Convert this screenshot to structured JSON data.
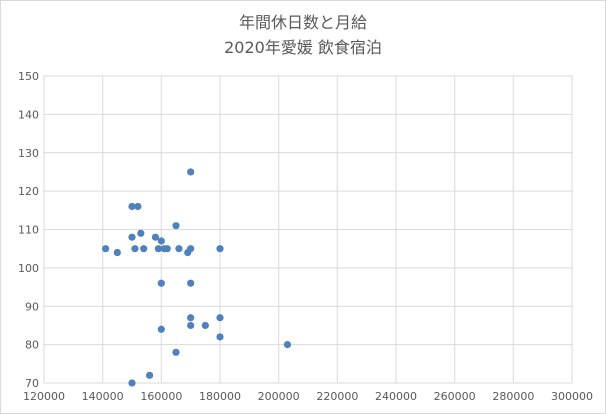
{
  "chart_data": {
    "type": "scatter",
    "title_lines": [
      "年間休日数と月給",
      "2020年愛媛 飲食宿泊"
    ],
    "xlabel": "",
    "ylabel": "",
    "xlim": [
      120000,
      300000
    ],
    "ylim": [
      70,
      150
    ],
    "x_ticks": [
      120000,
      140000,
      160000,
      180000,
      200000,
      220000,
      240000,
      260000,
      280000,
      300000
    ],
    "y_ticks": [
      70,
      80,
      90,
      100,
      110,
      120,
      130,
      140,
      150
    ],
    "grid": true,
    "legend": "none",
    "series": [
      {
        "color": "#4f81bd",
        "points": [
          [
            141000,
            105
          ],
          [
            145000,
            104
          ],
          [
            150000,
            116
          ],
          [
            152000,
            116
          ],
          [
            150000,
            108
          ],
          [
            153000,
            109
          ],
          [
            151000,
            105
          ],
          [
            154000,
            105
          ],
          [
            158000,
            108
          ],
          [
            160000,
            107
          ],
          [
            159000,
            105
          ],
          [
            161000,
            105
          ],
          [
            162000,
            105
          ],
          [
            165000,
            111
          ],
          [
            166000,
            105
          ],
          [
            169000,
            104
          ],
          [
            170000,
            105
          ],
          [
            170000,
            125
          ],
          [
            180000,
            105
          ],
          [
            160000,
            96
          ],
          [
            170000,
            96
          ],
          [
            170000,
            87
          ],
          [
            180000,
            87
          ],
          [
            170000,
            85
          ],
          [
            175000,
            85
          ],
          [
            160000,
            84
          ],
          [
            180000,
            82
          ],
          [
            165000,
            78
          ],
          [
            203000,
            80
          ],
          [
            156000,
            72
          ],
          [
            150000,
            70
          ]
        ]
      }
    ]
  }
}
